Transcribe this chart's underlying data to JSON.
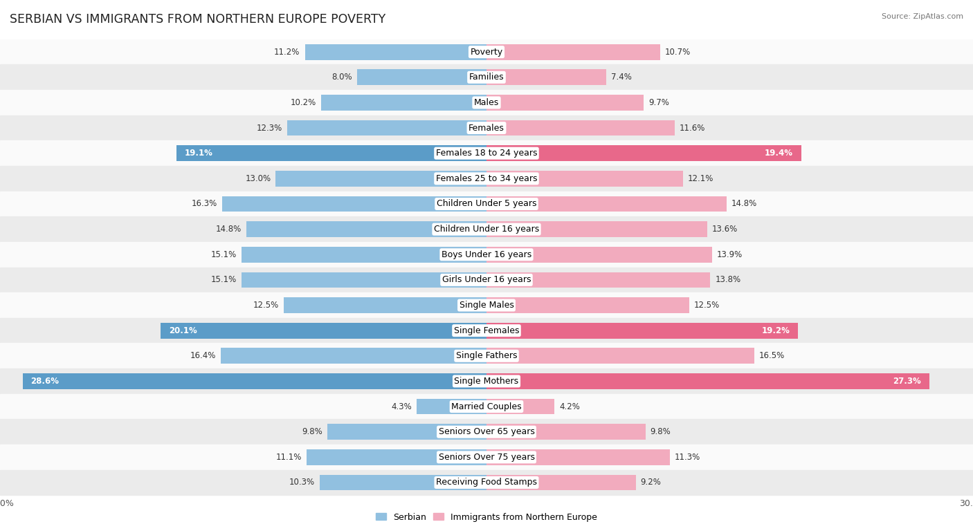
{
  "title": "Serbian vs Immigrants from Northern Europe Poverty",
  "source": "Source: ZipAtlas.com",
  "categories": [
    "Poverty",
    "Families",
    "Males",
    "Females",
    "Females 18 to 24 years",
    "Females 25 to 34 years",
    "Children Under 5 years",
    "Children Under 16 years",
    "Boys Under 16 years",
    "Girls Under 16 years",
    "Single Males",
    "Single Females",
    "Single Fathers",
    "Single Mothers",
    "Married Couples",
    "Seniors Over 65 years",
    "Seniors Over 75 years",
    "Receiving Food Stamps"
  ],
  "serbian": [
    11.2,
    8.0,
    10.2,
    12.3,
    19.1,
    13.0,
    16.3,
    14.8,
    15.1,
    15.1,
    12.5,
    20.1,
    16.4,
    28.6,
    4.3,
    9.8,
    11.1,
    10.3
  ],
  "immigrants": [
    10.7,
    7.4,
    9.7,
    11.6,
    19.4,
    12.1,
    14.8,
    13.6,
    13.9,
    13.8,
    12.5,
    19.2,
    16.5,
    27.3,
    4.2,
    9.8,
    11.3,
    9.2
  ],
  "serbian_color": "#91C0E0",
  "serbian_color_highlight": "#5B9CC8",
  "immigrants_color": "#F2ABBE",
  "immigrants_color_highlight": "#E8688A",
  "row_bg_light": "#FAFAFA",
  "row_bg_dark": "#EBEBEB",
  "max_value": 30.0,
  "highlight_threshold": 18.0,
  "label_fontsize": 9,
  "value_fontsize": 8.5,
  "title_fontsize": 12.5
}
